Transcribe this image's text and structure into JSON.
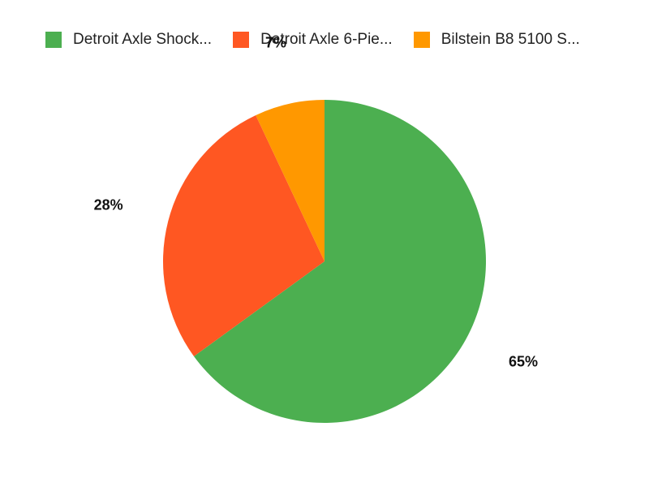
{
  "chart_data": {
    "type": "pie",
    "series": [
      {
        "name": "Detroit Axle Shock...",
        "value": 65,
        "label": "65%",
        "color": "#4caf50"
      },
      {
        "name": "Detroit Axle 6-Pie...",
        "value": 28,
        "label": "28%",
        "color": "#ff5722"
      },
      {
        "name": "Bilstein B8 5100 S...",
        "value": 7,
        "label": "7%",
        "color": "#ff9800"
      }
    ],
    "legend_position": "top-left"
  }
}
